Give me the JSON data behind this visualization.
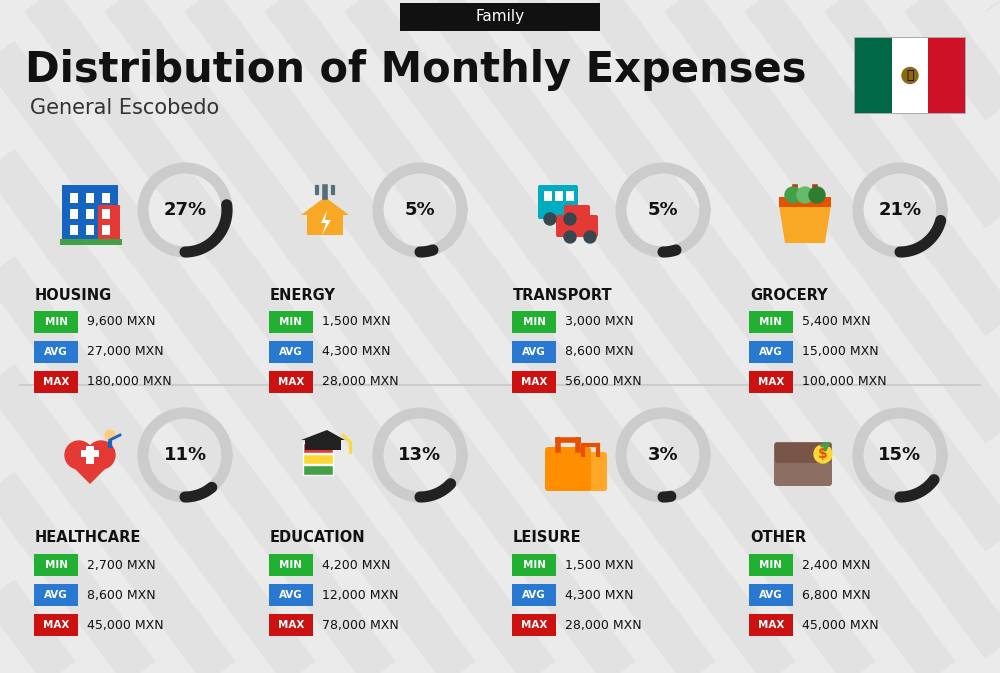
{
  "title": "Distribution of Monthly Expenses",
  "subtitle": "General Escobedo",
  "header_label": "Family",
  "bg_color": "#ebebeb",
  "categories": [
    {
      "name": "HOUSING",
      "pct": 27,
      "min_val": "9,600 MXN",
      "avg_val": "27,000 MXN",
      "max_val": "180,000 MXN",
      "icon": "housing",
      "row": 0,
      "col": 0
    },
    {
      "name": "ENERGY",
      "pct": 5,
      "min_val": "1,500 MXN",
      "avg_val": "4,300 MXN",
      "max_val": "28,000 MXN",
      "icon": "energy",
      "row": 0,
      "col": 1
    },
    {
      "name": "TRANSPORT",
      "pct": 5,
      "min_val": "3,000 MXN",
      "avg_val": "8,600 MXN",
      "max_val": "56,000 MXN",
      "icon": "transport",
      "row": 0,
      "col": 2
    },
    {
      "name": "GROCERY",
      "pct": 21,
      "min_val": "5,400 MXN",
      "avg_val": "15,000 MXN",
      "max_val": "100,000 MXN",
      "icon": "grocery",
      "row": 0,
      "col": 3
    },
    {
      "name": "HEALTHCARE",
      "pct": 11,
      "min_val": "2,700 MXN",
      "avg_val": "8,600 MXN",
      "max_val": "45,000 MXN",
      "icon": "healthcare",
      "row": 1,
      "col": 0
    },
    {
      "name": "EDUCATION",
      "pct": 13,
      "min_val": "4,200 MXN",
      "avg_val": "12,000 MXN",
      "max_val": "78,000 MXN",
      "icon": "education",
      "row": 1,
      "col": 1
    },
    {
      "name": "LEISURE",
      "pct": 3,
      "min_val": "1,500 MXN",
      "avg_val": "4,300 MXN",
      "max_val": "28,000 MXN",
      "icon": "leisure",
      "row": 1,
      "col": 2
    },
    {
      "name": "OTHER",
      "pct": 15,
      "min_val": "2,400 MXN",
      "avg_val": "6,800 MXN",
      "max_val": "45,000 MXN",
      "icon": "other",
      "row": 1,
      "col": 3
    }
  ],
  "min_color": "#22b033",
  "avg_color": "#2979d0",
  "max_color": "#cc1111",
  "arc_dark": "#222222",
  "arc_light": "#cccccc",
  "stripe_color": "#dcdcdc",
  "divider_color": "#cccccc",
  "flag_green": "#006847",
  "flag_white": "#ffffff",
  "flag_red": "#CE1126"
}
